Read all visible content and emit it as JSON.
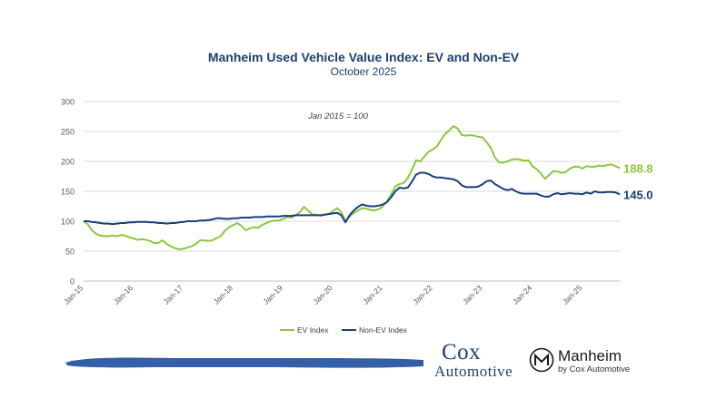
{
  "chart_data": {
    "type": "line",
    "title": "Manheim Used Vehicle Value Index: EV and Non-EV",
    "subtitle": "October 2025",
    "annotation": "Jan 2015 = 100",
    "ylim": [
      0,
      300
    ],
    "yticks": [
      0,
      50,
      100,
      150,
      200,
      250,
      300
    ],
    "x_tick_labels": [
      "Jan-15",
      "Jan-16",
      "Jan-17",
      "Jan-18",
      "Jan-19",
      "Jan-20",
      "Jan-21",
      "Jan-22",
      "Jan-23",
      "Jan-24",
      "Jan-25"
    ],
    "x_start": "2015-01",
    "x_end": "2025-10",
    "grid": "horizontal",
    "legend_position": "bottom",
    "series": [
      {
        "name": "EV Index",
        "color": "#8dc63f",
        "end_label": "188.8",
        "points": [
          [
            "2015-01",
            100
          ],
          [
            "2015-02",
            95
          ],
          [
            "2015-03",
            85
          ],
          [
            "2015-04",
            79
          ],
          [
            "2015-05",
            76
          ],
          [
            "2015-06",
            75
          ],
          [
            "2015-07",
            75
          ],
          [
            "2015-08",
            76
          ],
          [
            "2015-09",
            75
          ],
          [
            "2015-10",
            77
          ],
          [
            "2015-11",
            76
          ],
          [
            "2015-12",
            73
          ],
          [
            "2016-01",
            71
          ],
          [
            "2016-02",
            69
          ],
          [
            "2016-03",
            70
          ],
          [
            "2016-04",
            69
          ],
          [
            "2016-05",
            67
          ],
          [
            "2016-06",
            63
          ],
          [
            "2016-07",
            64
          ],
          [
            "2016-08",
            68
          ],
          [
            "2016-09",
            62
          ],
          [
            "2016-10",
            58
          ],
          [
            "2016-11",
            55
          ],
          [
            "2016-12",
            53
          ],
          [
            "2017-01",
            54
          ],
          [
            "2017-02",
            56
          ],
          [
            "2017-03",
            58
          ],
          [
            "2017-04",
            62
          ],
          [
            "2017-05",
            68
          ],
          [
            "2017-06",
            68
          ],
          [
            "2017-07",
            67
          ],
          [
            "2017-08",
            68
          ],
          [
            "2017-09",
            72
          ],
          [
            "2017-10",
            75
          ],
          [
            "2017-11",
            84
          ],
          [
            "2017-12",
            90
          ],
          [
            "2018-01",
            94
          ],
          [
            "2018-02",
            97
          ],
          [
            "2018-03",
            92
          ],
          [
            "2018-04",
            85
          ],
          [
            "2018-05",
            88
          ],
          [
            "2018-06",
            90
          ],
          [
            "2018-07",
            89
          ],
          [
            "2018-08",
            94
          ],
          [
            "2018-09",
            97
          ],
          [
            "2018-10",
            100
          ],
          [
            "2018-11",
            101
          ],
          [
            "2018-12",
            101
          ],
          [
            "2019-01",
            104
          ],
          [
            "2019-02",
            107
          ],
          [
            "2019-03",
            106
          ],
          [
            "2019-04",
            110
          ],
          [
            "2019-05",
            115
          ],
          [
            "2019-06",
            124
          ],
          [
            "2019-07",
            118
          ],
          [
            "2019-08",
            111
          ],
          [
            "2019-09",
            111
          ],
          [
            "2019-10",
            109
          ],
          [
            "2019-11",
            111
          ],
          [
            "2019-12",
            112
          ],
          [
            "2020-01",
            117
          ],
          [
            "2020-02",
            122
          ],
          [
            "2020-03",
            115
          ],
          [
            "2020-04",
            100
          ],
          [
            "2020-05",
            108
          ],
          [
            "2020-06",
            114
          ],
          [
            "2020-07",
            118
          ],
          [
            "2020-08",
            122
          ],
          [
            "2020-09",
            121
          ],
          [
            "2020-10",
            119
          ],
          [
            "2020-11",
            118
          ],
          [
            "2020-12",
            120
          ],
          [
            "2021-01",
            125
          ],
          [
            "2021-02",
            133
          ],
          [
            "2021-03",
            145
          ],
          [
            "2021-04",
            158
          ],
          [
            "2021-05",
            162
          ],
          [
            "2021-06",
            164
          ],
          [
            "2021-07",
            172
          ],
          [
            "2021-08",
            186
          ],
          [
            "2021-09",
            202
          ],
          [
            "2021-10",
            200
          ],
          [
            "2021-11",
            208
          ],
          [
            "2021-12",
            216
          ],
          [
            "2022-01",
            220
          ],
          [
            "2022-02",
            225
          ],
          [
            "2022-03",
            236
          ],
          [
            "2022-04",
            246
          ],
          [
            "2022-05",
            252
          ],
          [
            "2022-06",
            259
          ],
          [
            "2022-07",
            255
          ],
          [
            "2022-08",
            244
          ],
          [
            "2022-09",
            243
          ],
          [
            "2022-10",
            244
          ],
          [
            "2022-11",
            243
          ],
          [
            "2022-12",
            241
          ],
          [
            "2023-01",
            240
          ],
          [
            "2023-02",
            232
          ],
          [
            "2023-03",
            222
          ],
          [
            "2023-04",
            206
          ],
          [
            "2023-05",
            198
          ],
          [
            "2023-06",
            198
          ],
          [
            "2023-07",
            200
          ],
          [
            "2023-08",
            203
          ],
          [
            "2023-09",
            204
          ],
          [
            "2023-10",
            203
          ],
          [
            "2023-11",
            201
          ],
          [
            "2023-12",
            202
          ],
          [
            "2024-01",
            192
          ],
          [
            "2024-02",
            187
          ],
          [
            "2024-03",
            180
          ],
          [
            "2024-04",
            171
          ],
          [
            "2024-05",
            177
          ],
          [
            "2024-06",
            184
          ],
          [
            "2024-07",
            183
          ],
          [
            "2024-08",
            181
          ],
          [
            "2024-09",
            182
          ],
          [
            "2024-10",
            188
          ],
          [
            "2024-11",
            191
          ],
          [
            "2024-12",
            191
          ],
          [
            "2025-01",
            188
          ],
          [
            "2025-02",
            192
          ],
          [
            "2025-03",
            191
          ],
          [
            "2025-04",
            191
          ],
          [
            "2025-05",
            193
          ],
          [
            "2025-06",
            192
          ],
          [
            "2025-07",
            194
          ],
          [
            "2025-08",
            195
          ],
          [
            "2025-09",
            192
          ],
          [
            "2025-10",
            188.8
          ]
        ]
      },
      {
        "name": "Non-EV Index",
        "color": "#1b3f7a",
        "end_label": "145.0",
        "points": [
          [
            "2015-01",
            100
          ],
          [
            "2015-02",
            100
          ],
          [
            "2015-03",
            99
          ],
          [
            "2015-04",
            98
          ],
          [
            "2015-05",
            97
          ],
          [
            "2015-06",
            96
          ],
          [
            "2015-07",
            96
          ],
          [
            "2015-08",
            95
          ],
          [
            "2015-09",
            96
          ],
          [
            "2015-10",
            97
          ],
          [
            "2015-11",
            97
          ],
          [
            "2015-12",
            98
          ],
          [
            "2016-01",
            98
          ],
          [
            "2016-02",
            99
          ],
          [
            "2016-03",
            99
          ],
          [
            "2016-04",
            99
          ],
          [
            "2016-05",
            98
          ],
          [
            "2016-06",
            98
          ],
          [
            "2016-07",
            97
          ],
          [
            "2016-08",
            97
          ],
          [
            "2016-09",
            96
          ],
          [
            "2016-10",
            97
          ],
          [
            "2016-11",
            97
          ],
          [
            "2016-12",
            98
          ],
          [
            "2017-01",
            99
          ],
          [
            "2017-02",
            100
          ],
          [
            "2017-03",
            100
          ],
          [
            "2017-04",
            100
          ],
          [
            "2017-05",
            101
          ],
          [
            "2017-06",
            101
          ],
          [
            "2017-07",
            102
          ],
          [
            "2017-08",
            103
          ],
          [
            "2017-09",
            105
          ],
          [
            "2017-10",
            105
          ],
          [
            "2017-11",
            104
          ],
          [
            "2017-12",
            104
          ],
          [
            "2018-01",
            105
          ],
          [
            "2018-02",
            105
          ],
          [
            "2018-03",
            106
          ],
          [
            "2018-04",
            106
          ],
          [
            "2018-05",
            106
          ],
          [
            "2018-06",
            107
          ],
          [
            "2018-07",
            107
          ],
          [
            "2018-08",
            107
          ],
          [
            "2018-09",
            108
          ],
          [
            "2018-10",
            108
          ],
          [
            "2018-11",
            108
          ],
          [
            "2018-12",
            108
          ],
          [
            "2019-01",
            109
          ],
          [
            "2019-02",
            109
          ],
          [
            "2019-03",
            109
          ],
          [
            "2019-04",
            110
          ],
          [
            "2019-05",
            110
          ],
          [
            "2019-06",
            110
          ],
          [
            "2019-07",
            110
          ],
          [
            "2019-08",
            110
          ],
          [
            "2019-09",
            110
          ],
          [
            "2019-10",
            110
          ],
          [
            "2019-11",
            111
          ],
          [
            "2019-12",
            112
          ],
          [
            "2020-01",
            113
          ],
          [
            "2020-02",
            114
          ],
          [
            "2020-03",
            110
          ],
          [
            "2020-04",
            98
          ],
          [
            "2020-05",
            110
          ],
          [
            "2020-06",
            118
          ],
          [
            "2020-07",
            124
          ],
          [
            "2020-08",
            128
          ],
          [
            "2020-09",
            126
          ],
          [
            "2020-10",
            125
          ],
          [
            "2020-11",
            125
          ],
          [
            "2020-12",
            126
          ],
          [
            "2021-01",
            128
          ],
          [
            "2021-02",
            132
          ],
          [
            "2021-03",
            140
          ],
          [
            "2021-04",
            150
          ],
          [
            "2021-05",
            156
          ],
          [
            "2021-06",
            155
          ],
          [
            "2021-07",
            156
          ],
          [
            "2021-08",
            166
          ],
          [
            "2021-09",
            178
          ],
          [
            "2021-10",
            181
          ],
          [
            "2021-11",
            181
          ],
          [
            "2021-12",
            179
          ],
          [
            "2022-01",
            175
          ],
          [
            "2022-02",
            173
          ],
          [
            "2022-03",
            173
          ],
          [
            "2022-04",
            172
          ],
          [
            "2022-05",
            171
          ],
          [
            "2022-06",
            170
          ],
          [
            "2022-07",
            167
          ],
          [
            "2022-08",
            160
          ],
          [
            "2022-09",
            157
          ],
          [
            "2022-10",
            157
          ],
          [
            "2022-11",
            157
          ],
          [
            "2022-12",
            158
          ],
          [
            "2023-01",
            162
          ],
          [
            "2023-02",
            167
          ],
          [
            "2023-03",
            168
          ],
          [
            "2023-04",
            162
          ],
          [
            "2023-05",
            158
          ],
          [
            "2023-06",
            154
          ],
          [
            "2023-07",
            152
          ],
          [
            "2023-08",
            154
          ],
          [
            "2023-09",
            150
          ],
          [
            "2023-10",
            147
          ],
          [
            "2023-11",
            146
          ],
          [
            "2023-12",
            146
          ],
          [
            "2024-01",
            146
          ],
          [
            "2024-02",
            146
          ],
          [
            "2024-03",
            143
          ],
          [
            "2024-04",
            141
          ],
          [
            "2024-05",
            141
          ],
          [
            "2024-06",
            145
          ],
          [
            "2024-07",
            147
          ],
          [
            "2024-08",
            145
          ],
          [
            "2024-09",
            146
          ],
          [
            "2024-10",
            147
          ],
          [
            "2024-11",
            146
          ],
          [
            "2024-12",
            146
          ],
          [
            "2025-01",
            145
          ],
          [
            "2025-02",
            148
          ],
          [
            "2025-03",
            146
          ],
          [
            "2025-04",
            150
          ],
          [
            "2025-05",
            148
          ],
          [
            "2025-06",
            148
          ],
          [
            "2025-07",
            149
          ],
          [
            "2025-08",
            149
          ],
          [
            "2025-09",
            148
          ],
          [
            "2025-10",
            145.0
          ]
        ]
      }
    ]
  },
  "footer": {
    "cox_logo_line1": "Cox",
    "cox_logo_line2": "Automotive",
    "manheim_name": "Manheim",
    "manheim_tagline": "by Cox Automotive"
  }
}
